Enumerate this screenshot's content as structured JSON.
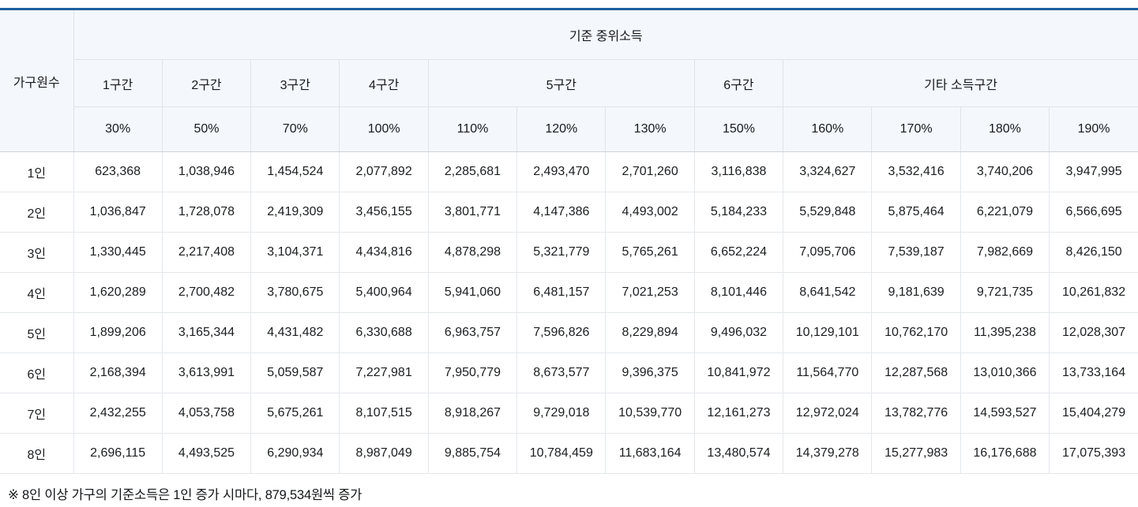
{
  "colors": {
    "top_border": "#1d5f9f",
    "header_bg": "#f4f8fc",
    "grid_line": "#e4e8ec",
    "header_grid_line": "#dde4ea",
    "header_body_divider": "#ccd3da",
    "text": "#1b1d1f"
  },
  "chart_data": {
    "type": "table",
    "title": "기준 중위소득",
    "corner_header": "가구원수",
    "column_groups": [
      {
        "label": "1구간",
        "colspan": 1
      },
      {
        "label": "2구간",
        "colspan": 1
      },
      {
        "label": "3구간",
        "colspan": 1
      },
      {
        "label": "4구간",
        "colspan": 1
      },
      {
        "label": "5구간",
        "colspan": 3
      },
      {
        "label": "6구간",
        "colspan": 1
      },
      {
        "label": "기타 소득구간",
        "colspan": 4
      }
    ],
    "percent_headers": [
      "30%",
      "50%",
      "70%",
      "100%",
      "110%",
      "120%",
      "130%",
      "150%",
      "160%",
      "170%",
      "180%",
      "190%"
    ],
    "rows": [
      {
        "label": "1인",
        "values": [
          "623,368",
          "1,038,946",
          "1,454,524",
          "2,077,892",
          "2,285,681",
          "2,493,470",
          "2,701,260",
          "3,116,838",
          "3,324,627",
          "3,532,416",
          "3,740,206",
          "3,947,995"
        ]
      },
      {
        "label": "2인",
        "values": [
          "1,036,847",
          "1,728,078",
          "2,419,309",
          "3,456,155",
          "3,801,771",
          "4,147,386",
          "4,493,002",
          "5,184,233",
          "5,529,848",
          "5,875,464",
          "6,221,079",
          "6,566,695"
        ]
      },
      {
        "label": "3인",
        "values": [
          "1,330,445",
          "2,217,408",
          "3,104,371",
          "4,434,816",
          "4,878,298",
          "5,321,779",
          "5,765,261",
          "6,652,224",
          "7,095,706",
          "7,539,187",
          "7,982,669",
          "8,426,150"
        ]
      },
      {
        "label": "4인",
        "values": [
          "1,620,289",
          "2,700,482",
          "3,780,675",
          "5,400,964",
          "5,941,060",
          "6,481,157",
          "7,021,253",
          "8,101,446",
          "8,641,542",
          "9,181,639",
          "9,721,735",
          "10,261,832"
        ]
      },
      {
        "label": "5인",
        "values": [
          "1,899,206",
          "3,165,344",
          "4,431,482",
          "6,330,688",
          "6,963,757",
          "7,596,826",
          "8,229,894",
          "9,496,032",
          "10,129,101",
          "10,762,170",
          "11,395,238",
          "12,028,307"
        ]
      },
      {
        "label": "6인",
        "values": [
          "2,168,394",
          "3,613,991",
          "5,059,587",
          "7,227,981",
          "7,950,779",
          "8,673,577",
          "9,396,375",
          "10,841,972",
          "11,564,770",
          "12,287,568",
          "13,010,366",
          "13,733,164"
        ]
      },
      {
        "label": "7인",
        "values": [
          "2,432,255",
          "4,053,758",
          "5,675,261",
          "8,107,515",
          "8,918,267",
          "9,729,018",
          "10,539,770",
          "12,161,273",
          "12,972,024",
          "13,782,776",
          "14,593,527",
          "15,404,279"
        ]
      },
      {
        "label": "8인",
        "values": [
          "2,696,115",
          "4,493,525",
          "6,290,934",
          "8,987,049",
          "9,885,754",
          "10,784,459",
          "11,683,164",
          "13,480,574",
          "14,379,278",
          "15,277,983",
          "16,176,688",
          "17,075,393"
        ]
      }
    ],
    "footnote": "※ 8인 이상 가구의 기준소득은 1인 증가 시마다, 879,534원씩 증가"
  }
}
